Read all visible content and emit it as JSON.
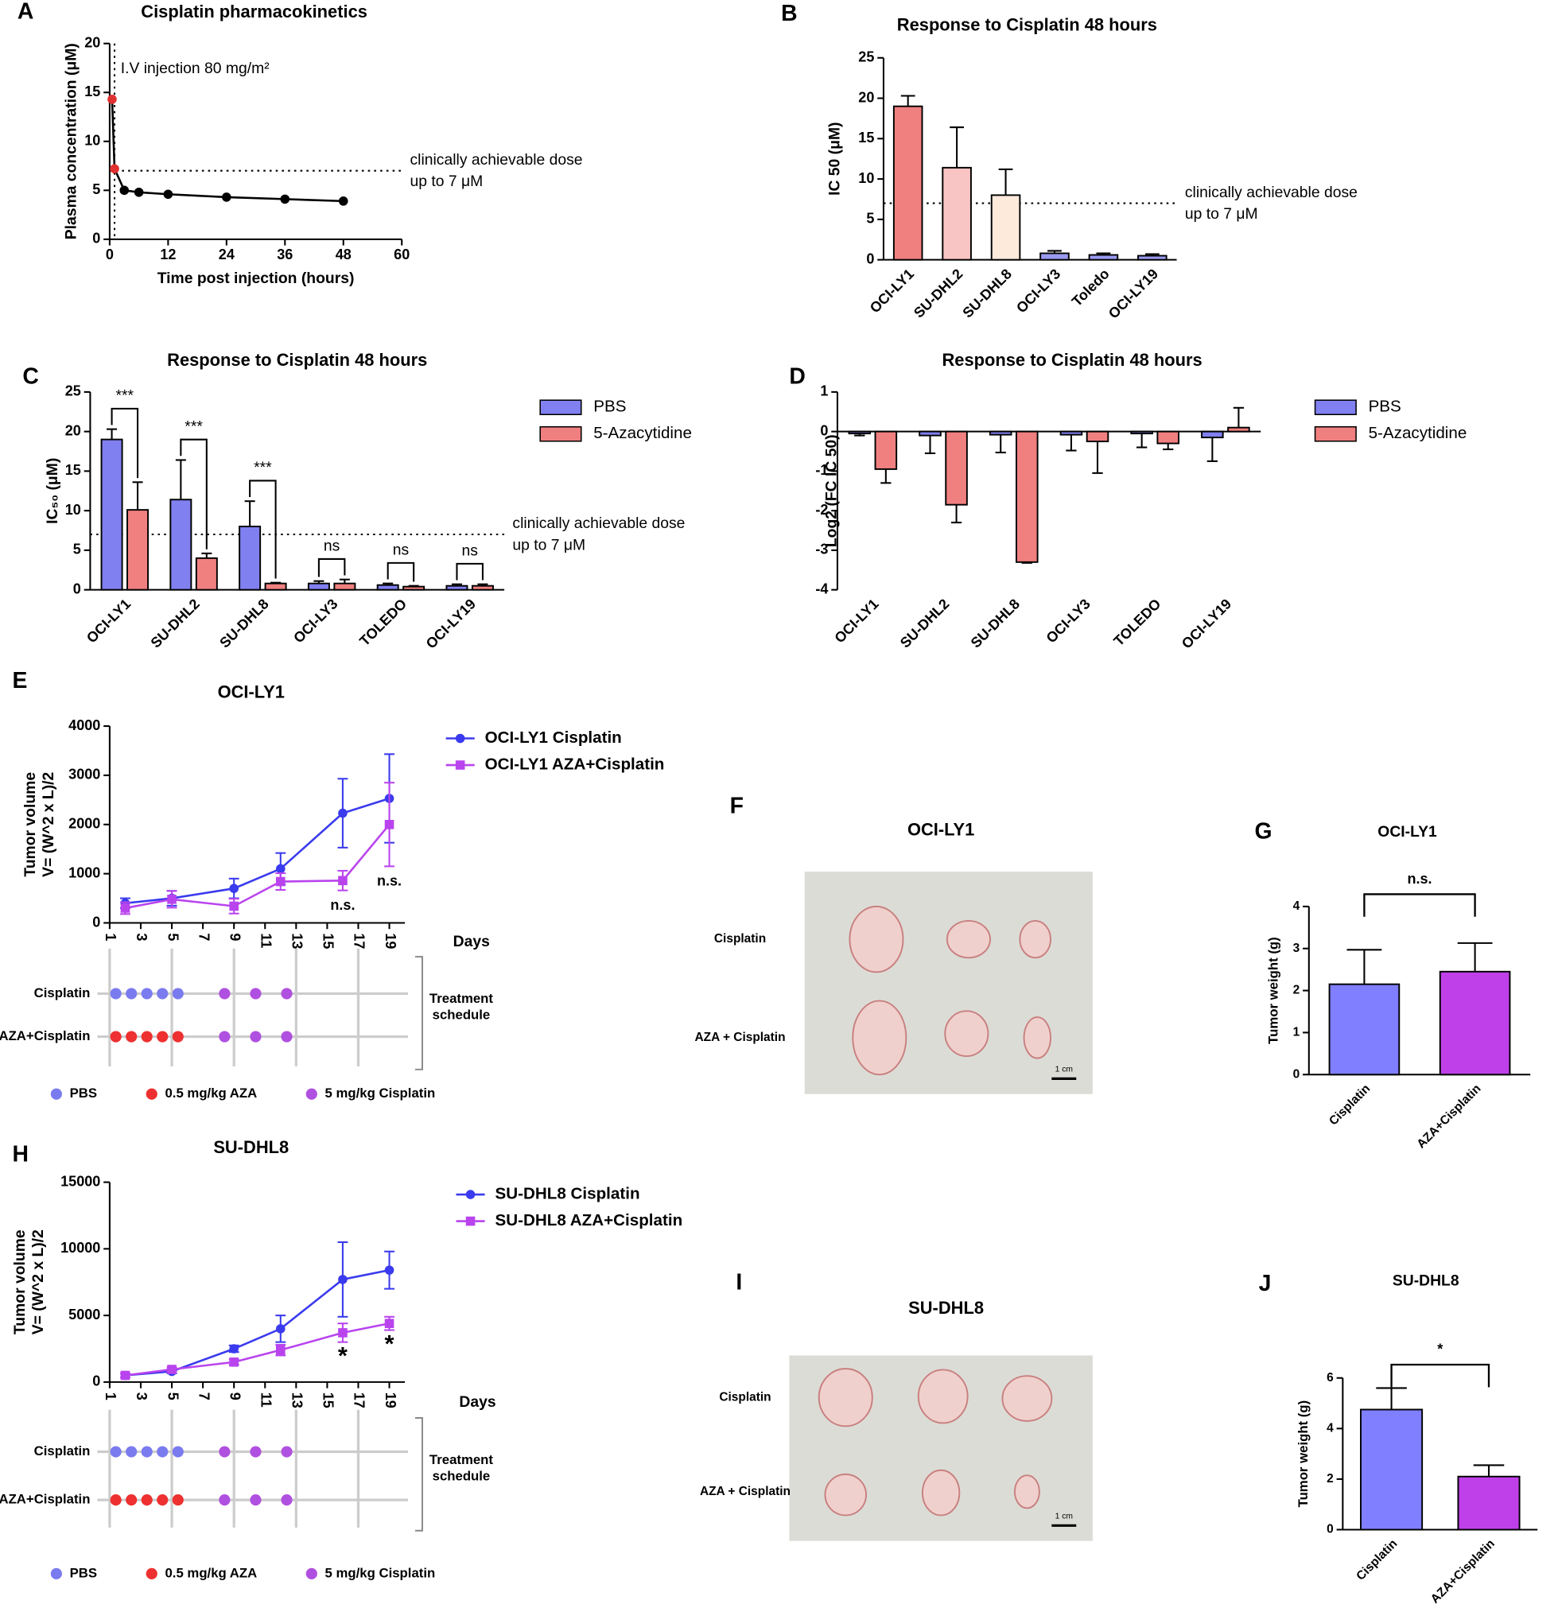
{
  "chart_data": [
    {
      "panel": "A",
      "type": "line",
      "title": "Cisplatin pharmacokinetics",
      "xlabel": "Time post injection (hours)",
      "ylabel": "Plasma concentration (μM)",
      "x": [
        0.5,
        1,
        3,
        6,
        12,
        24,
        36,
        48
      ],
      "series": [
        {
          "color": "#000000",
          "marker": "circle",
          "point_colors": [
            "#e03030",
            "#e03030",
            "#000000",
            "#000000",
            "#000000",
            "#000000",
            "#000000",
            "#000000"
          ],
          "values": [
            14.3,
            7.2,
            5,
            4.8,
            4.6,
            4.3,
            4.1,
            3.9
          ]
        }
      ],
      "xlim": [
        0,
        60
      ],
      "xticks": [
        0,
        12,
        24,
        36,
        48,
        60
      ],
      "ylim": [
        0,
        20
      ],
      "yticks": [
        0,
        5,
        10,
        15,
        20
      ],
      "hline": {
        "value": 7,
        "label": [
          "clinically achievable dose",
          "up to 7 μM"
        ]
      },
      "vline": {
        "value": 1,
        "label": "I.V injection 80 mg/m²"
      }
    },
    {
      "panel": "B",
      "type": "bar",
      "title": "Response to Cisplatin 48 hours",
      "ylabel": "IC 50  (μM)",
      "categories": [
        "OCI-LY1",
        "SU-DHL2",
        "SU-DHL8",
        "OCI-LY3",
        "Toledo",
        "OCI-LY19"
      ],
      "values": [
        19,
        11.4,
        8,
        0.8,
        0.6,
        0.5
      ],
      "errors": [
        1.3,
        5,
        3.2,
        0.3,
        0.2,
        0.2
      ],
      "colors": [
        "#f08080",
        "#f9c4c4",
        "#fdeadb",
        "#9a9af0",
        "#9a9af0",
        "#9a9af0"
      ],
      "ylim": [
        0,
        25
      ],
      "yticks": [
        0,
        5,
        10,
        15,
        20,
        25
      ],
      "hline": {
        "value": 7,
        "label": [
          "clinically achievable dose",
          "up to 7 μM"
        ]
      }
    },
    {
      "panel": "C",
      "type": "bar",
      "title": "Response to Cisplatin 48 hours",
      "ylabel": "IC₅₀  (μM)",
      "categories": [
        "OCI-LY1",
        "SU-DHL2",
        "SU-DHL8",
        "OCI-LY3",
        "TOLEDO",
        "OCI-LY19"
      ],
      "series": [
        {
          "name": "PBS",
          "color": "#8080f0",
          "values": [
            19,
            11.4,
            8,
            0.8,
            0.6,
            0.5
          ],
          "errors": [
            1.3,
            5,
            3.2,
            0.3,
            0.2,
            0.2
          ]
        },
        {
          "name": "5-Azacytidine",
          "color": "#f08080",
          "values": [
            10.1,
            4,
            0.8,
            0.8,
            0.4,
            0.5
          ],
          "errors": [
            3.5,
            0.6,
            0.1,
            0.5,
            0.1,
            0.2
          ]
        }
      ],
      "significance": [
        "***",
        "***",
        "***",
        "ns",
        "ns",
        "ns"
      ],
      "ylim": [
        0,
        25
      ],
      "yticks": [
        0,
        5,
        10,
        15,
        20,
        25
      ],
      "hline": {
        "value": 7,
        "label": [
          "clinically achievable dose",
          "up to 7 μM"
        ]
      }
    },
    {
      "panel": "D",
      "type": "bar",
      "title": "Response to Cisplatin 48 hours",
      "ylabel": "Log2 (FC IC 50)",
      "categories": [
        "OCI-LY1",
        "SU-DHL2",
        "SU-DHL8",
        "OCI-LY3",
        "TOLEDO",
        "OCI-LY19"
      ],
      "series": [
        {
          "name": "PBS",
          "color": "#8080f0",
          "values": [
            -0.05,
            -0.1,
            -0.08,
            -0.08,
            -0.05,
            -0.15
          ],
          "errors": [
            0.05,
            0.45,
            0.45,
            0.4,
            0.35,
            0.6
          ]
        },
        {
          "name": "5-Azacytidine",
          "color": "#f08080",
          "values": [
            -0.95,
            -1.85,
            -3.3,
            -0.25,
            -0.3,
            0.1
          ],
          "errors": [
            0.35,
            0.45,
            0.02,
            0.8,
            0.15,
            0.5
          ]
        }
      ],
      "ylim": [
        -4,
        1
      ],
      "yticks": [
        -4,
        -3,
        -2,
        -1,
        0,
        1
      ]
    },
    {
      "panel": "E",
      "type": "line",
      "title": "OCI-LY1",
      "xlabel": "Days",
      "ylabel": [
        "Tumor volume",
        "V= (W^2 x L)/2"
      ],
      "x": [
        2,
        5,
        9,
        12,
        16,
        19
      ],
      "series": [
        {
          "name": "OCI-LY1 Cisplatin",
          "color": "#3a3aee",
          "marker": "circle",
          "values": [
            400,
            500,
            700,
            1100,
            2230,
            2530
          ],
          "errors": [
            100,
            150,
            200,
            320,
            700,
            900
          ]
        },
        {
          "name": "OCI-LY1 AZA+Cisplatin",
          "color": "#b944ee",
          "marker": "square",
          "values": [
            300,
            480,
            340,
            840,
            860,
            2000
          ],
          "errors": [
            120,
            170,
            150,
            170,
            200,
            850
          ],
          "annotations": [
            {
              "x": 16,
              "text": "n.s."
            },
            {
              "x": 19,
              "text": "n.s."
            }
          ]
        }
      ],
      "xlim": [
        1,
        20
      ],
      "xticks": [
        1,
        3,
        5,
        7,
        9,
        11,
        13,
        15,
        17,
        19
      ],
      "ylim": [
        0,
        4000
      ],
      "yticks": [
        0,
        1000,
        2000,
        3000,
        4000
      ],
      "schedule": {
        "rows": [
          "Cisplatin",
          "AZA+Cisplatin"
        ],
        "bracket_label": [
          "Treatment",
          "schedule"
        ],
        "legend": [
          {
            "label": "PBS",
            "color": "#7b7bf0",
            "days": [
              [
                1,
                2,
                3,
                4,
                5
              ],
              []
            ]
          },
          {
            "label": "0.5 mg/kg AZA",
            "color": "#ee3030",
            "days": [
              [],
              [
                1,
                2,
                3,
                4,
                5
              ]
            ]
          },
          {
            "label": "5 mg/kg Cisplatin",
            "color": "#b050e0",
            "days": [
              [
                8,
                10,
                12
              ],
              [
                8,
                10,
                12
              ]
            ]
          }
        ]
      }
    },
    {
      "panel": "G",
      "type": "bar",
      "title": "OCI-LY1",
      "ylabel": "Tumor weight (g)",
      "categories": [
        "Cisplatin",
        "AZA+Cisplatin"
      ],
      "values": [
        2.15,
        2.45
      ],
      "errors": [
        0.82,
        0.68
      ],
      "colors": [
        "#7f7fff",
        "#bf40e8"
      ],
      "ylim": [
        0,
        4
      ],
      "yticks": [
        0,
        1,
        2,
        3,
        4
      ],
      "significance": "n.s."
    },
    {
      "panel": "H",
      "type": "line",
      "title": "SU-DHL8",
      "xlabel": "Days",
      "ylabel": [
        "Tumor volume",
        "V= (W^2 x L)/2"
      ],
      "x": [
        2,
        5,
        9,
        12,
        16,
        19
      ],
      "series": [
        {
          "name": "SU-DHL8 Cisplatin",
          "color": "#3a3aee",
          "marker": "circle",
          "values": [
            500,
            800,
            2500,
            4000,
            7700,
            8400
          ],
          "errors": [
            150,
            150,
            250,
            1000,
            2800,
            1400
          ]
        },
        {
          "name": "SU-DHL8 AZA+Cisplatin",
          "color": "#b944ee",
          "marker": "square",
          "values": [
            500,
            950,
            1500,
            2400,
            3700,
            4400
          ],
          "errors": [
            150,
            150,
            200,
            400,
            700,
            500
          ],
          "annotations": [
            {
              "x": 16,
              "text": "*"
            },
            {
              "x": 19,
              "text": "*"
            }
          ]
        }
      ],
      "xlim": [
        1,
        20
      ],
      "xticks": [
        1,
        3,
        5,
        7,
        9,
        11,
        13,
        15,
        17,
        19
      ],
      "ylim": [
        0,
        15000
      ],
      "yticks": [
        0,
        5000,
        10000,
        15000
      ],
      "schedule": {
        "rows": [
          "Cisplatin",
          "AZA+Cisplatin"
        ],
        "bracket_label": [
          "Treatment",
          "schedule"
        ],
        "legend": [
          {
            "label": "PBS",
            "color": "#7b7bf0",
            "days": [
              [
                1,
                2,
                3,
                4,
                5
              ],
              []
            ]
          },
          {
            "label": "0.5 mg/kg AZA",
            "color": "#ee3030",
            "days": [
              [],
              [
                1,
                2,
                3,
                4,
                5
              ]
            ]
          },
          {
            "label": "5 mg/kg Cisplatin",
            "color": "#b050e0",
            "days": [
              [
                8,
                10,
                12
              ],
              [
                8,
                10,
                12
              ]
            ]
          }
        ]
      }
    },
    {
      "panel": "J",
      "type": "bar",
      "title": "SU-DHL8",
      "ylabel": "Tumor weight (g)",
      "categories": [
        "Cisplatin",
        "AZA+Cisplatin"
      ],
      "values": [
        4.75,
        2.1
      ],
      "errors": [
        0.85,
        0.45
      ],
      "colors": [
        "#7f7fff",
        "#bf40e8"
      ],
      "ylim": [
        0,
        6
      ],
      "yticks": [
        0,
        2,
        4,
        6
      ],
      "significance": "*"
    }
  ],
  "photos": [
    {
      "panel": "F",
      "title": "OCI-LY1",
      "rows": [
        "Cisplatin",
        "AZA + Cisplatin"
      ],
      "scale": "1 cm"
    },
    {
      "panel": "I",
      "title": "SU-DHL8",
      "rows": [
        "Cisplatin",
        "AZA + Cisplatin"
      ],
      "scale": "1 cm"
    }
  ]
}
